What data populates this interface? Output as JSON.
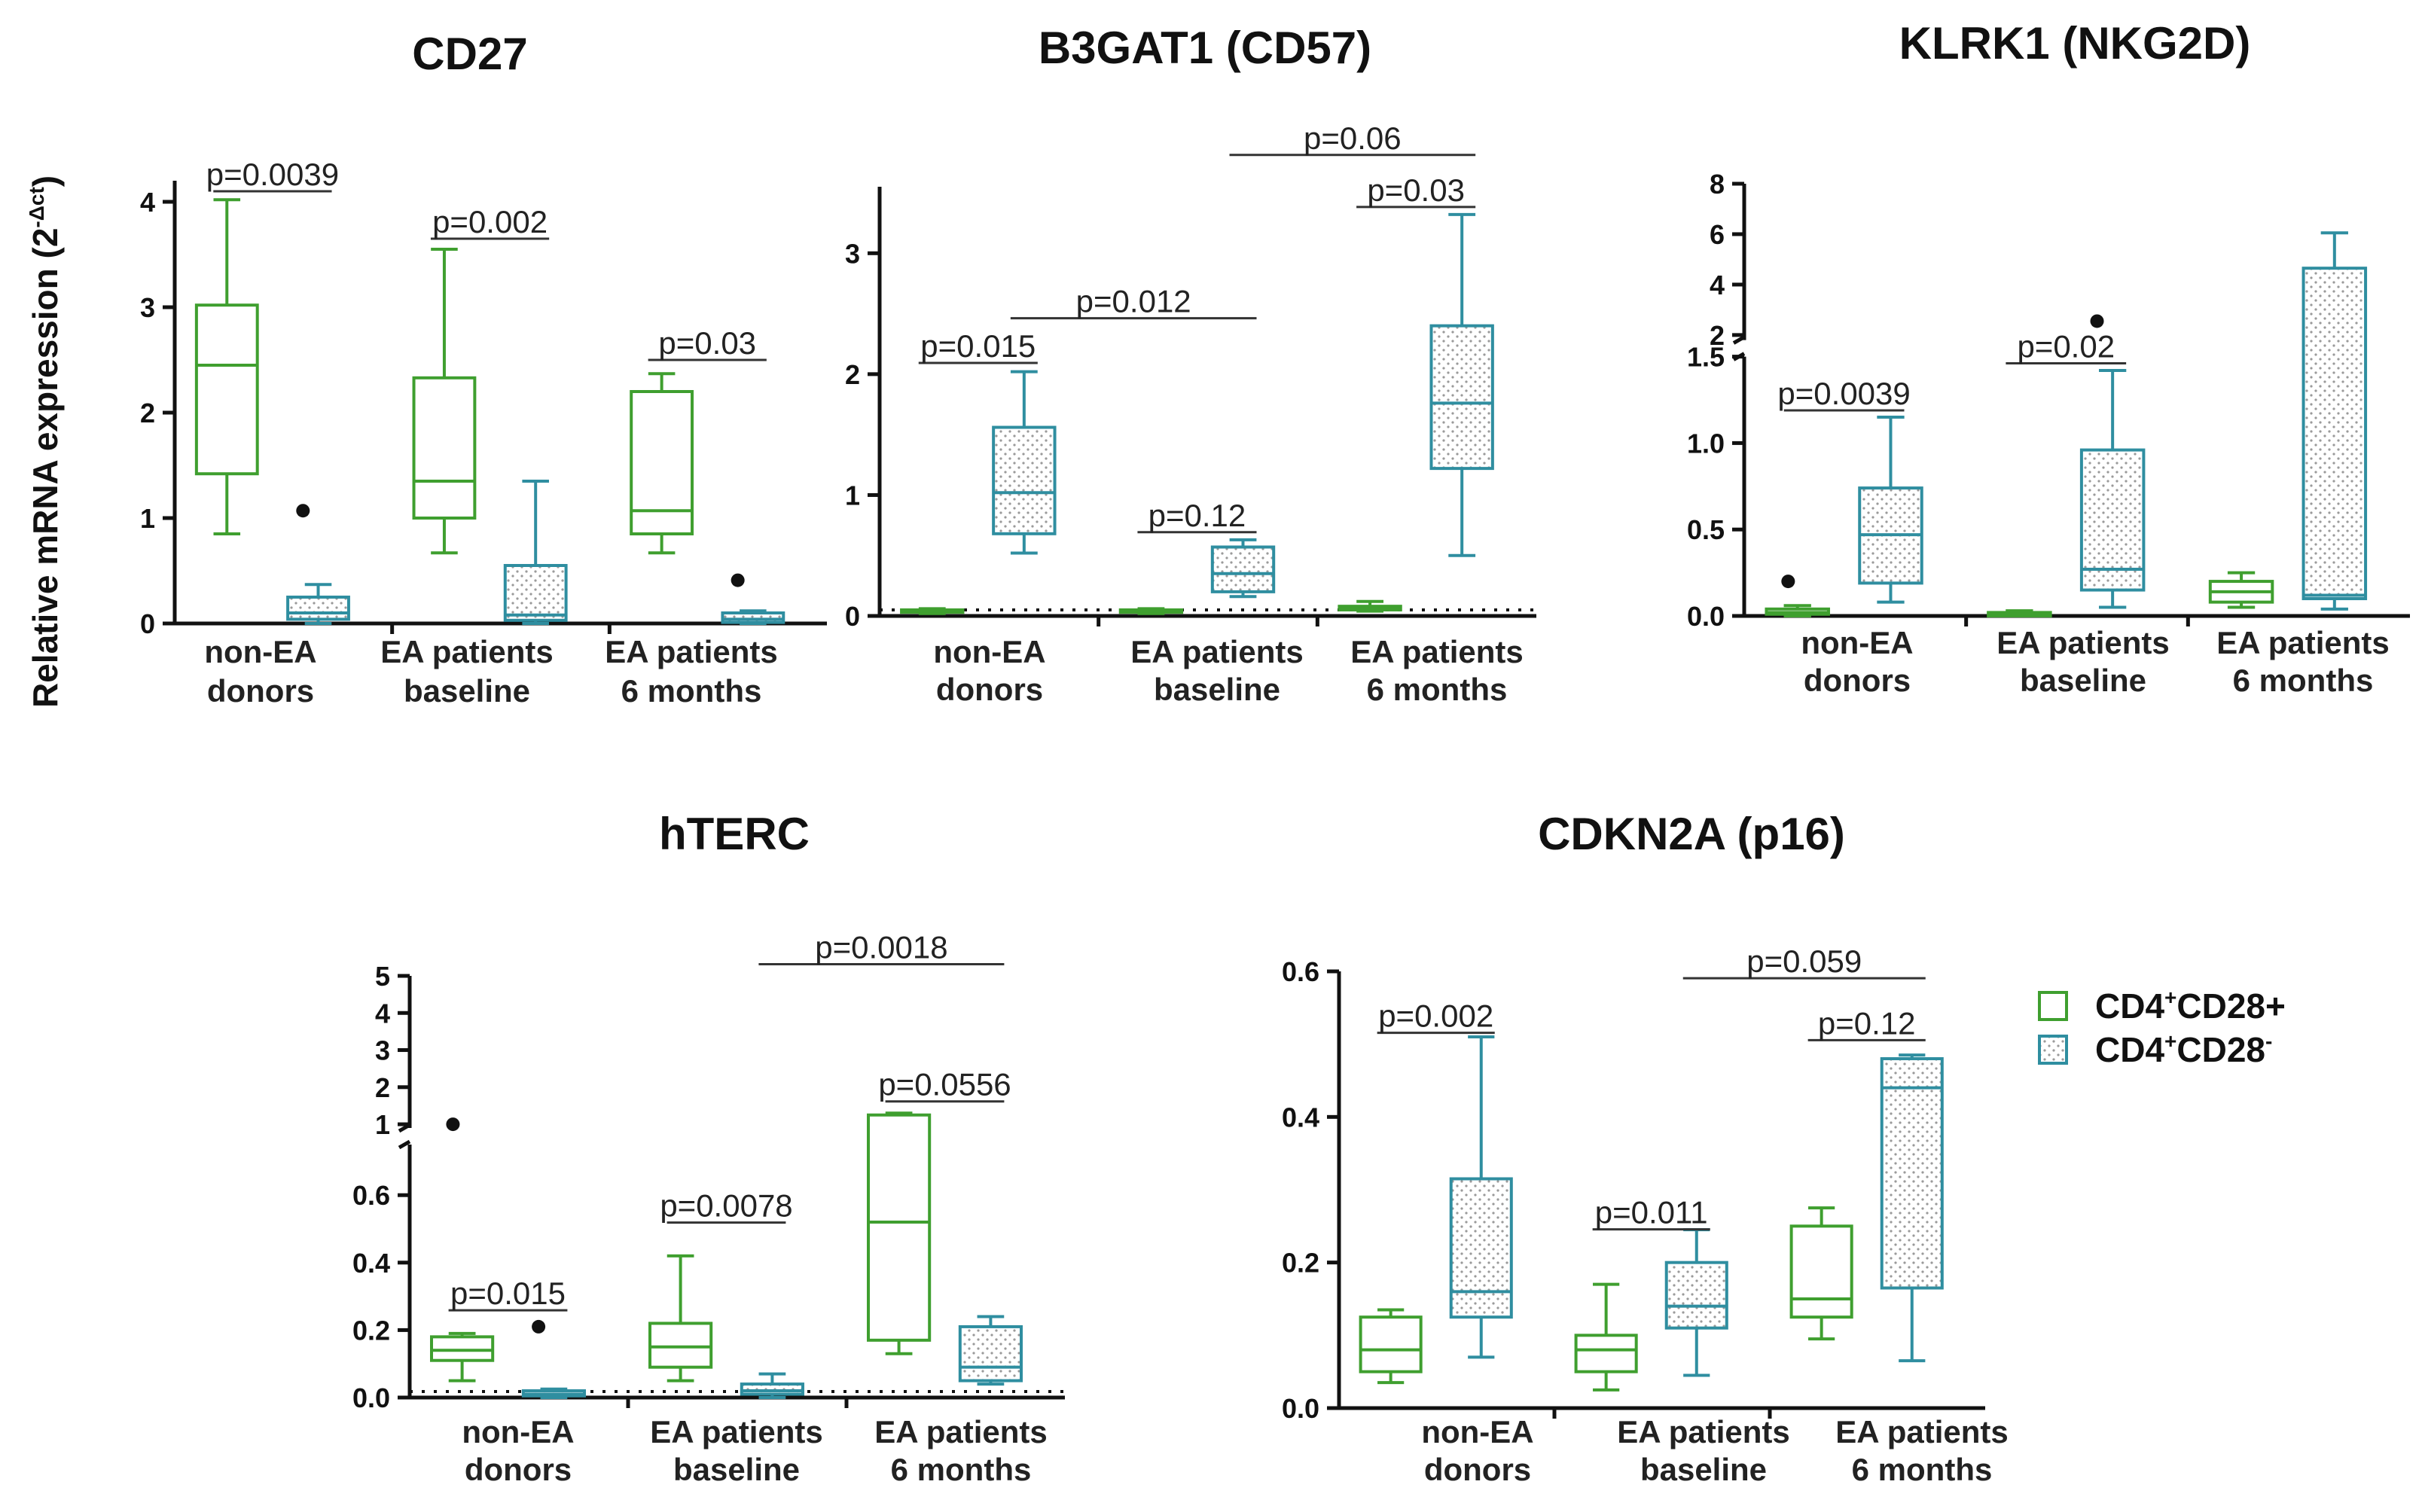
{
  "colors": {
    "green": "#3f9f2f",
    "teal": "#2f8ea0",
    "stipple": "#a8a8a8"
  },
  "y_axis_label": "Relative mRNA expression (2",
  "y_axis_label_exponent": "-Δct",
  "y_axis_label_close": ")",
  "legend": [
    {
      "prefix": "CD4",
      "sup1": "+",
      "mid": "CD28",
      "suffix": "+",
      "sup2": "",
      "color_key": "green",
      "hatched": false
    },
    {
      "prefix": "CD4",
      "sup1": "+",
      "mid": "CD28",
      "suffix": "",
      "sup2": "-",
      "color_key": "teal",
      "hatched": true
    }
  ],
  "chart_data": [
    {
      "type": "box",
      "title": "CD27",
      "categories": [
        {
          "line1": "non-EA",
          "line2": "donors"
        },
        {
          "line1": "EA patients",
          "line2": "baseline"
        },
        {
          "line1": "EA patients",
          "line2": "6 months"
        }
      ],
      "ylim": [
        0,
        4.2
      ],
      "yticks": [
        0,
        1,
        2,
        3,
        4
      ],
      "ytick_labels": [
        "0",
        "1",
        "2",
        "3",
        "4"
      ],
      "zero_line": false,
      "series": [
        {
          "name": "CD4+CD28+",
          "boxes": [
            {
              "min": 0.85,
              "q1": 1.42,
              "median": 2.45,
              "q3": 3.02,
              "max": 4.02,
              "outliers": []
            },
            {
              "min": 0.67,
              "q1": 1.0,
              "median": 1.35,
              "q3": 2.33,
              "max": 3.55,
              "outliers": []
            },
            {
              "min": 0.67,
              "q1": 0.85,
              "median": 1.07,
              "q3": 2.2,
              "max": 2.37,
              "outliers": []
            }
          ]
        },
        {
          "name": "CD4+CD28-",
          "boxes": [
            {
              "min": 0.0,
              "q1": 0.04,
              "median": 0.1,
              "q3": 0.25,
              "max": 0.37,
              "outliers": [
                1.07
              ]
            },
            {
              "min": 0.0,
              "q1": 0.03,
              "median": 0.08,
              "q3": 0.55,
              "max": 1.35,
              "outliers": []
            },
            {
              "min": 0.0,
              "q1": 0.01,
              "median": 0.04,
              "q3": 0.1,
              "max": 0.12,
              "outliers": [
                0.41
              ]
            }
          ]
        }
      ],
      "comparisons": [
        {
          "label": "p=0.0039",
          "from": [
            0,
            0
          ],
          "to": [
            0,
            1
          ],
          "y": 4.2
        },
        {
          "label": "p=0.002",
          "from": [
            1,
            0
          ],
          "to": [
            1,
            1
          ],
          "y": 3.75
        },
        {
          "label": "p=0.03",
          "from": [
            2,
            0
          ],
          "to": [
            2,
            1
          ],
          "y": 2.6
        }
      ]
    },
    {
      "type": "box",
      "title": "B3GAT1 (CD57)",
      "categories": [
        {
          "line1": "non-EA",
          "line2": "donors"
        },
        {
          "line1": "EA patients",
          "line2": "baseline"
        },
        {
          "line1": "EA patients",
          "line2": "6 months"
        }
      ],
      "ylim": [
        0,
        3.55
      ],
      "yticks": [
        0,
        1,
        2,
        3
      ],
      "ytick_labels": [
        "0",
        "1",
        "2",
        "3"
      ],
      "zero_line": true,
      "series": [
        {
          "name": "CD4+CD28+",
          "boxes": [
            {
              "min": 0.02,
              "q1": 0.03,
              "median": 0.04,
              "q3": 0.05,
              "max": 0.06,
              "outliers": []
            },
            {
              "min": 0.02,
              "q1": 0.03,
              "median": 0.04,
              "q3": 0.05,
              "max": 0.06,
              "outliers": []
            },
            {
              "min": 0.04,
              "q1": 0.05,
              "median": 0.06,
              "q3": 0.08,
              "max": 0.12,
              "outliers": []
            }
          ]
        },
        {
          "name": "CD4+CD28-",
          "boxes": [
            {
              "min": 0.52,
              "q1": 0.68,
              "median": 1.02,
              "q3": 1.56,
              "max": 2.02,
              "outliers": []
            },
            {
              "min": 0.16,
              "q1": 0.2,
              "median": 0.35,
              "q3": 0.57,
              "max": 0.63,
              "outliers": []
            },
            {
              "min": 0.5,
              "q1": 1.22,
              "median": 1.76,
              "q3": 2.4,
              "max": 3.32,
              "outliers": []
            }
          ]
        }
      ],
      "comparisons": [
        {
          "label": "p=0.015",
          "from": [
            0,
            0
          ],
          "to": [
            0,
            1
          ],
          "y": 2.18
        },
        {
          "label": "p=0.012",
          "from": [
            0,
            1
          ],
          "to": [
            1,
            1
          ],
          "y": 2.55
        },
        {
          "label": "p=0.12",
          "from": [
            1,
            0
          ],
          "to": [
            1,
            1
          ],
          "y": 0.78
        },
        {
          "label": "p=0.06",
          "from": [
            1,
            1
          ],
          "to": [
            2,
            1
          ],
          "y": 3.9
        },
        {
          "label": "p=0.03",
          "from": [
            2,
            0
          ],
          "to": [
            2,
            1
          ],
          "y": 3.47
        }
      ]
    },
    {
      "type": "box",
      "title": "KLRK1 (NKG2D)",
      "categories": [
        {
          "line1": "non-EA",
          "line2": "donors"
        },
        {
          "line1": "EA patients",
          "line2": "baseline"
        },
        {
          "line1": "EA patients",
          "line2": "6 months"
        }
      ],
      "ylim": [
        0,
        8.0
      ],
      "axis_break": {
        "lower_max": 1.5,
        "upper_min": 1.8
      },
      "yticks": [
        0,
        0.5,
        1.0,
        1.5,
        2,
        4,
        6,
        8
      ],
      "ytick_labels": [
        "0.0",
        "0.5",
        "1.0",
        "1.5",
        "2",
        "4",
        "6",
        "8"
      ],
      "zero_line": false,
      "series": [
        {
          "name": "CD4+CD28+",
          "boxes": [
            {
              "min": 0.0,
              "q1": 0.01,
              "median": 0.02,
              "q3": 0.04,
              "max": 0.06,
              "outliers": [
                0.2
              ]
            },
            {
              "min": 0.0,
              "q1": 0.0,
              "median": 0.01,
              "q3": 0.02,
              "max": 0.03,
              "outliers": []
            },
            {
              "min": 0.05,
              "q1": 0.08,
              "median": 0.14,
              "q3": 0.2,
              "max": 0.25,
              "outliers": []
            }
          ]
        },
        {
          "name": "CD4+CD28-",
          "boxes": [
            {
              "min": 0.08,
              "q1": 0.19,
              "median": 0.47,
              "q3": 0.74,
              "max": 1.15,
              "outliers": []
            },
            {
              "min": 0.05,
              "q1": 0.15,
              "median": 0.27,
              "q3": 0.96,
              "max": 1.42,
              "outliers": [
                2.55
              ]
            },
            {
              "min": 0.04,
              "q1": 0.1,
              "median": 0.12,
              "q3": 4.65,
              "max": 6.05,
              "outliers": []
            }
          ]
        }
      ],
      "comparisons": [
        {
          "label": "p=0.0039",
          "from": [
            0,
            0
          ],
          "to": [
            0,
            1
          ],
          "y": 1.25
        },
        {
          "label": "p=0.02",
          "from": [
            1,
            0
          ],
          "to": [
            1,
            1
          ],
          "y": 1.57
        }
      ]
    },
    {
      "type": "box",
      "title": "hTERC",
      "categories": [
        {
          "line1": "non-EA",
          "line2": "donors"
        },
        {
          "line1": "EA patients",
          "line2": "baseline"
        },
        {
          "line1": "EA patients",
          "line2": "6 months"
        }
      ],
      "ylim": [
        0,
        5
      ],
      "axis_break": {
        "lower_max": 0.75,
        "upper_min": 0.9
      },
      "yticks": [
        0,
        0.2,
        0.4,
        0.6,
        1,
        2,
        3,
        4,
        5
      ],
      "ytick_labels": [
        "0.0",
        "0.2",
        "0.4",
        "0.6",
        "1",
        "2",
        "3",
        "4",
        "5"
      ],
      "zero_line": true,
      "series": [
        {
          "name": "CD4+CD28+",
          "boxes": [
            {
              "min": 0.05,
              "q1": 0.11,
              "median": 0.14,
              "q3": 0.18,
              "max": 0.19,
              "outliers": [
                1.0
              ]
            },
            {
              "min": 0.05,
              "q1": 0.09,
              "median": 0.15,
              "q3": 0.22,
              "max": 0.42,
              "outliers": []
            },
            {
              "min": 0.13,
              "q1": 0.17,
              "median": 0.52,
              "q3": 1.25,
              "max": 1.3,
              "outliers": []
            }
          ]
        },
        {
          "name": "CD4+CD28-",
          "boxes": [
            {
              "min": 0.0,
              "q1": 0.005,
              "median": 0.01,
              "q3": 0.02,
              "max": 0.025,
              "outliers": [
                0.21
              ]
            },
            {
              "min": 0.0,
              "q1": 0.01,
              "median": 0.02,
              "q3": 0.04,
              "max": 0.07,
              "outliers": []
            },
            {
              "min": 0.04,
              "q1": 0.05,
              "median": 0.09,
              "q3": 0.21,
              "max": 0.24,
              "outliers": []
            }
          ]
        }
      ],
      "comparisons": [
        {
          "label": "p=0.015",
          "from": [
            0,
            0
          ],
          "to": [
            0,
            1
          ],
          "y": 0.29
        },
        {
          "label": "p=0.0078",
          "from": [
            1,
            0
          ],
          "to": [
            1,
            1
          ],
          "y": 0.55
        },
        {
          "label": "p=0.0556",
          "from": [
            2,
            0
          ],
          "to": [
            2,
            1
          ],
          "y": 1.9
        },
        {
          "label": "p=0.0018",
          "from": [
            1,
            1
          ],
          "to": [
            2,
            1
          ],
          "y": 5.6
        }
      ]
    },
    {
      "type": "box",
      "title": "CDKN2A (p16)",
      "categories": [
        {
          "line1": "non-EA",
          "line2": "donors"
        },
        {
          "line1": "EA patients",
          "line2": "baseline"
        },
        {
          "line1": "EA patients",
          "line2": "6 months"
        }
      ],
      "ylim": [
        0,
        0.6
      ],
      "yticks": [
        0,
        0.2,
        0.4,
        0.6
      ],
      "ytick_labels": [
        "0.0",
        "0.2",
        "0.4",
        "0.6"
      ],
      "zero_line": false,
      "series": [
        {
          "name": "CD4+CD28+",
          "boxes": [
            {
              "min": 0.035,
              "q1": 0.05,
              "median": 0.08,
              "q3": 0.125,
              "max": 0.135,
              "outliers": []
            },
            {
              "min": 0.025,
              "q1": 0.05,
              "median": 0.08,
              "q3": 0.1,
              "max": 0.17,
              "outliers": []
            },
            {
              "min": 0.095,
              "q1": 0.125,
              "median": 0.15,
              "q3": 0.25,
              "max": 0.275,
              "outliers": []
            }
          ]
        },
        {
          "name": "CD4+CD28-",
          "boxes": [
            {
              "min": 0.07,
              "q1": 0.125,
              "median": 0.16,
              "q3": 0.315,
              "max": 0.51,
              "outliers": []
            },
            {
              "min": 0.045,
              "q1": 0.11,
              "median": 0.14,
              "q3": 0.2,
              "max": 0.245,
              "outliers": []
            },
            {
              "min": 0.065,
              "q1": 0.165,
              "median": 0.44,
              "q3": 0.48,
              "max": 0.485,
              "outliers": []
            }
          ]
        }
      ],
      "comparisons": [
        {
          "label": "p=0.002",
          "from": [
            0,
            0
          ],
          "to": [
            0,
            1
          ],
          "y": 0.53
        },
        {
          "label": "p=0.011",
          "from": [
            1,
            0
          ],
          "to": [
            1,
            1
          ],
          "y": 0.26
        },
        {
          "label": "p=0.12",
          "from": [
            2,
            0
          ],
          "to": [
            2,
            1
          ],
          "y": 0.52
        },
        {
          "label": "p=0.059",
          "from": [
            1,
            1
          ],
          "to": [
            2,
            1
          ],
          "y": 0.605
        }
      ]
    }
  ]
}
